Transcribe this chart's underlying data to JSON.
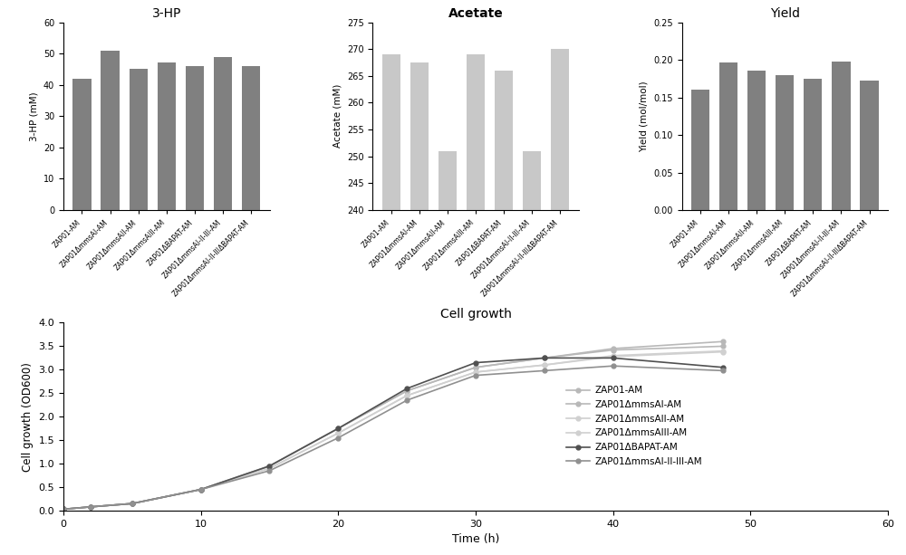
{
  "categories": [
    "ZAP01-AM",
    "ZAP01ΔmmsAI-AM",
    "ZAP01ΔmmsAII-AM",
    "ZAP01ΔmmsAIII-AM",
    "ZAP01ΔBAPAT-AM",
    "ZAP01ΔmmsAI-II-III-AM",
    "ZAP01ΔmmsAI-II-IIIΔBAPAT-AM"
  ],
  "hp3_values": [
    42.0,
    51.0,
    45.0,
    47.0,
    46.0,
    49.0,
    46.0
  ],
  "hp3_ylim": [
    0,
    60
  ],
  "hp3_yticks": [
    0.0,
    10.0,
    20.0,
    30.0,
    40.0,
    50.0,
    60.0
  ],
  "hp3_ylabel": "3-HP (mM)",
  "hp3_title": "3-HP",
  "hp3_bar_color": "#808080",
  "acetate_values": [
    269.0,
    267.5,
    251.0,
    269.0,
    266.0,
    251.0,
    270.0
  ],
  "acetate_ylim": [
    240,
    275
  ],
  "acetate_yticks": [
    240.0,
    245.0,
    250.0,
    255.0,
    260.0,
    265.0,
    270.0,
    275.0
  ],
  "acetate_ylabel": "Acetate (mM)",
  "acetate_title": "Acetate",
  "acetate_bar_color": "#c8c8c8",
  "yield_values": [
    0.16,
    0.197,
    0.185,
    0.18,
    0.175,
    0.198,
    0.172
  ],
  "yield_ylim": [
    0,
    0.25
  ],
  "yield_yticks": [
    0.0,
    0.05,
    0.1,
    0.15,
    0.2,
    0.25
  ],
  "yield_ylabel": "Yield (mol/mol)",
  "yield_title": "Yield",
  "yield_bar_color": "#808080",
  "cell_growth_title": "Cell growth",
  "cell_growth_xlabel": "Time (h)",
  "cell_growth_ylabel": "Cell growth (OD600)",
  "cell_growth_xlim": [
    0,
    60
  ],
  "cell_growth_ylim": [
    0,
    4
  ],
  "cell_growth_yticks": [
    0,
    0.5,
    1.0,
    1.5,
    2.0,
    2.5,
    3.0,
    3.5,
    4.0
  ],
  "cell_growth_xticks": [
    0,
    10,
    20,
    30,
    40,
    50,
    60
  ],
  "cell_growth_time": [
    0,
    2,
    5,
    10,
    15,
    20,
    25,
    30,
    35,
    40,
    48
  ],
  "cell_growth_series": {
    "ZAP01-AM": [
      0.03,
      0.08,
      0.15,
      0.45,
      0.95,
      1.75,
      2.55,
      3.05,
      3.25,
      3.45,
      3.6
    ],
    "ZAP01ΔmmsAI-AM": [
      0.03,
      0.08,
      0.15,
      0.45,
      0.95,
      1.75,
      2.55,
      3.05,
      3.25,
      3.42,
      3.5
    ],
    "ZAP01ΔmmsAII-AM": [
      0.03,
      0.08,
      0.15,
      0.45,
      0.9,
      1.65,
      2.45,
      2.95,
      3.1,
      3.3,
      3.4
    ],
    "ZAP01ΔmmsAIII-AM": [
      0.03,
      0.08,
      0.15,
      0.45,
      0.9,
      1.65,
      2.45,
      2.95,
      3.1,
      3.28,
      3.38
    ],
    "ZAP01ΔBAPAT-AM": [
      0.03,
      0.08,
      0.15,
      0.45,
      0.95,
      1.75,
      2.6,
      3.15,
      3.25,
      3.25,
      3.05
    ],
    "ZAP01ΔmmsAI-II-III-AM": [
      0.03,
      0.08,
      0.15,
      0.45,
      0.85,
      1.55,
      2.35,
      2.88,
      2.98,
      3.08,
      2.98
    ]
  },
  "cell_growth_colors": {
    "ZAP01-AM": "#b8b8b8",
    "ZAP01ΔmmsAI-AM": "#b8b8b8",
    "ZAP01ΔmmsAII-AM": "#d0d0d0",
    "ZAP01ΔmmsAIII-AM": "#d0d0d0",
    "ZAP01ΔBAPAT-AM": "#505050",
    "ZAP01ΔmmsAI-II-III-AM": "#909090"
  },
  "cell_growth_legend_labels": [
    "ZAP01-AM",
    "ZAP01ΔmmsAI-AM",
    "ZAP01ΔmmsAII-AM",
    "ZAP01ΔmmsAIII-AM",
    "ZAP01ΔBAPAT-AM",
    "ZAP01ΔmmsAI-II-III-AM"
  ]
}
